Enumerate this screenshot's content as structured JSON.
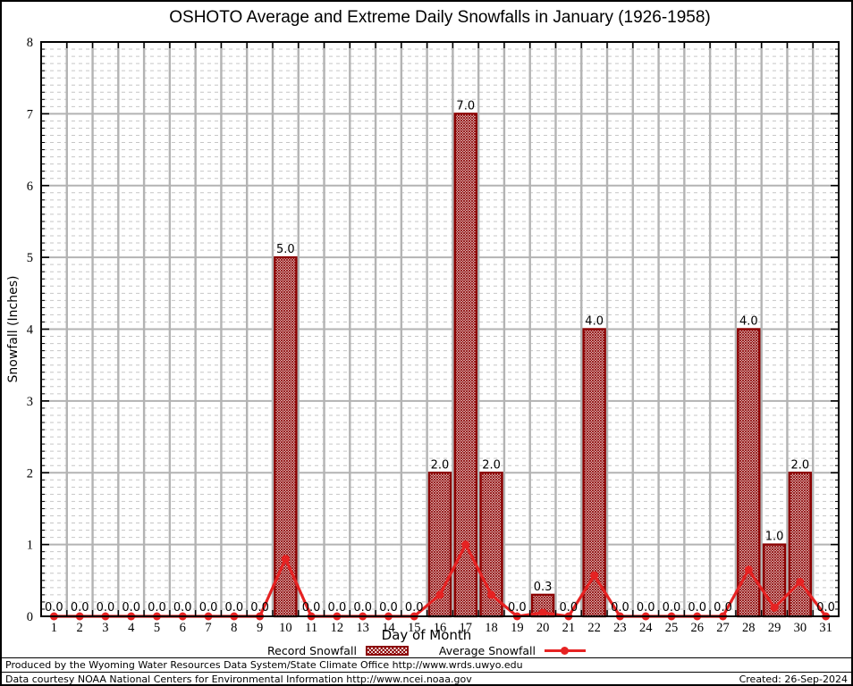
{
  "title": "OSHOTO Average and Extreme Daily Snowfalls in January (1926-1958)",
  "chart_data": {
    "type": "bar",
    "title": "OSHOTO Average and Extreme Daily Snowfalls in January (1926-1958)",
    "xlabel": "Day of Month",
    "ylabel": "Snowfall (Inches)",
    "ylim": [
      0,
      8
    ],
    "y_major_tick_step": 1,
    "y_minor_tick_step": 0.1,
    "xlim": [
      1,
      31
    ],
    "categories": [
      1,
      2,
      3,
      4,
      5,
      6,
      7,
      8,
      9,
      10,
      11,
      12,
      13,
      14,
      15,
      16,
      17,
      18,
      19,
      20,
      21,
      22,
      23,
      24,
      25,
      26,
      27,
      28,
      29,
      30,
      31
    ],
    "series": [
      {
        "name": "Record Snowfall",
        "type": "bar",
        "style": "dark-red crosshatched bars, every bar labeled with value to 1 decimal",
        "values": [
          0,
          0,
          0,
          0,
          0,
          0,
          0,
          0,
          0,
          5.0,
          0,
          0,
          0,
          0,
          0,
          2.0,
          7.0,
          2.0,
          0,
          0.3,
          0,
          4.0,
          0,
          0,
          0,
          0,
          0,
          4.0,
          1.0,
          2.0,
          0
        ]
      },
      {
        "name": "Average Snowfall",
        "type": "line",
        "style": "red line with filled circle markers",
        "values": [
          0,
          0,
          0,
          0,
          0,
          0,
          0,
          0,
          0,
          0.8,
          0,
          0,
          0,
          0,
          0,
          0.3,
          1.0,
          0.3,
          0,
          0.05,
          0,
          0.57,
          0,
          0,
          0,
          0,
          0,
          0.65,
          0.12,
          0.48,
          0
        ]
      }
    ],
    "grid": "major solid gray at integers and day boundaries; minor dashed gray every 0.1",
    "legend_position": "bottom-center"
  },
  "colors": {
    "bar": "#8b0000",
    "line": "#e62222",
    "grid_major": "#b3b3b3",
    "grid_minor": "#c6c6c6",
    "axis": "#000000",
    "background": "#ffffff"
  },
  "footer": {
    "produced_by": "Produced by the Wyoming Water Resources Data System/State Climate Office http://www.wrds.uwyo.edu",
    "data_courtesy": "Data courtesy NOAA National Centers for Environmental Information http://www.ncei.noaa.gov",
    "created": "Created: 26-Sep-2024"
  }
}
